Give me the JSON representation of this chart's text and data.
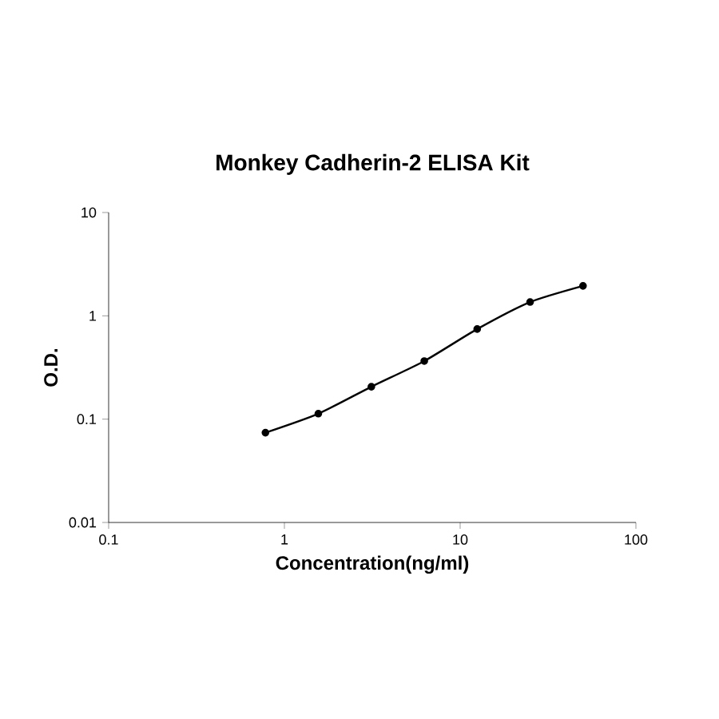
{
  "chart_data": {
    "type": "line",
    "title": "Monkey Cadherin-2 ELISA Kit",
    "xlabel": "Concentration(ng/ml)",
    "ylabel": "O.D.",
    "log": "xy",
    "marker": "circle",
    "line_style": "solid",
    "x": [
      0.78,
      1.56,
      3.125,
      6.25,
      12.5,
      25,
      50
    ],
    "series": [
      {
        "color": "#000000",
        "values": [
          0.074,
          0.113,
          0.206,
          0.365,
          0.745,
          1.36,
          1.95
        ]
      }
    ],
    "xlim": [
      0.1,
      100
    ],
    "ylim": [
      0.01,
      10
    ],
    "xticks": [
      0.1,
      1,
      10,
      100
    ],
    "yticks": [
      0.01,
      0.1,
      1,
      10
    ]
  }
}
